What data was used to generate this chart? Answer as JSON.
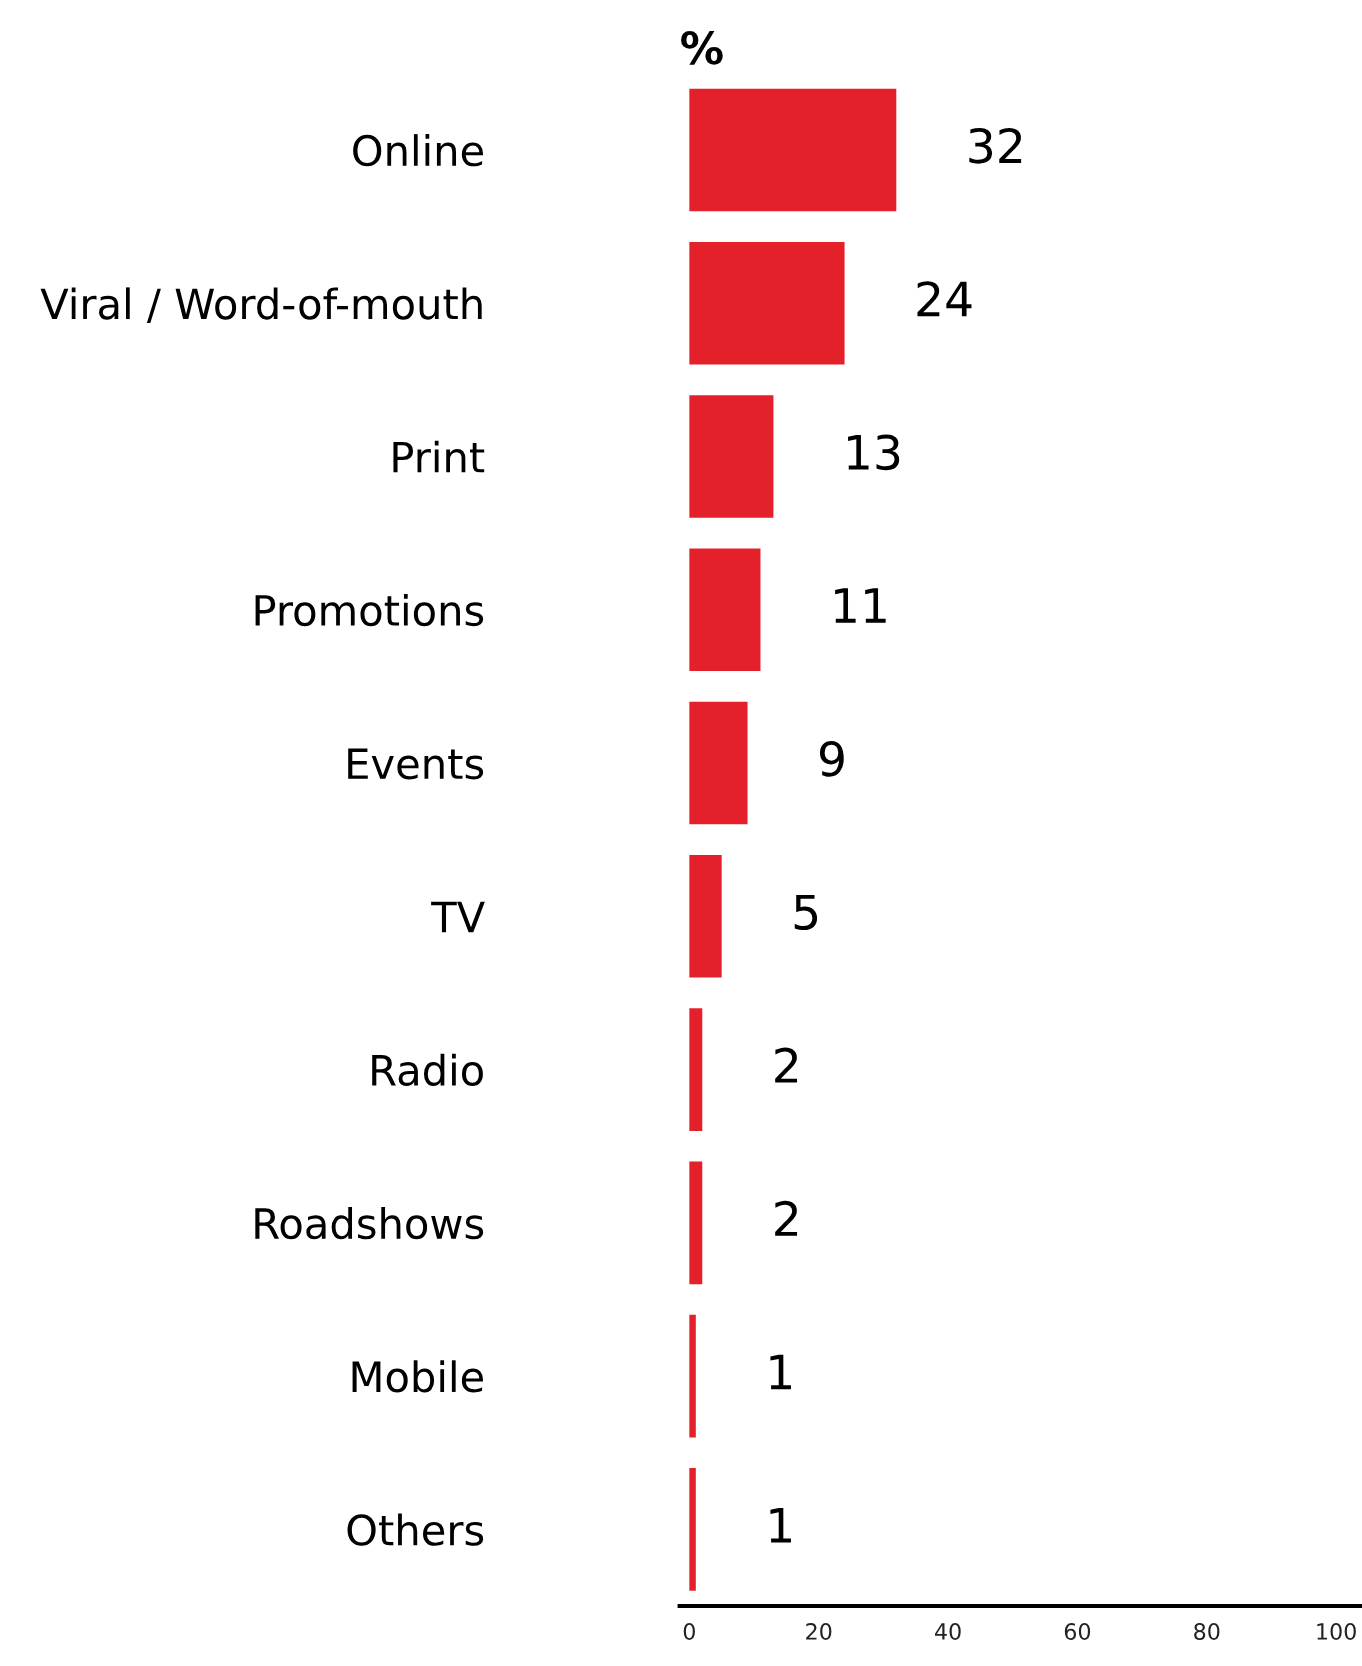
{
  "chart_data": {
    "type": "bar",
    "orientation": "horizontal",
    "categories": [
      "Online",
      "Viral / Word-of-mouth",
      "Print",
      "Promotions",
      "Events",
      "TV",
      "Radio",
      "Roadshows",
      "Mobile",
      "Others"
    ],
    "values": [
      32,
      24,
      13,
      11,
      9,
      5,
      2,
      2,
      1,
      1
    ],
    "color": "#e4202a",
    "data_labels": true,
    "xlim": [
      -1.5,
      104
    ],
    "xticks": [
      0,
      20,
      40,
      60,
      80,
      100
    ],
    "grid": false,
    "legend": false,
    "annotations": [
      "%"
    ]
  }
}
